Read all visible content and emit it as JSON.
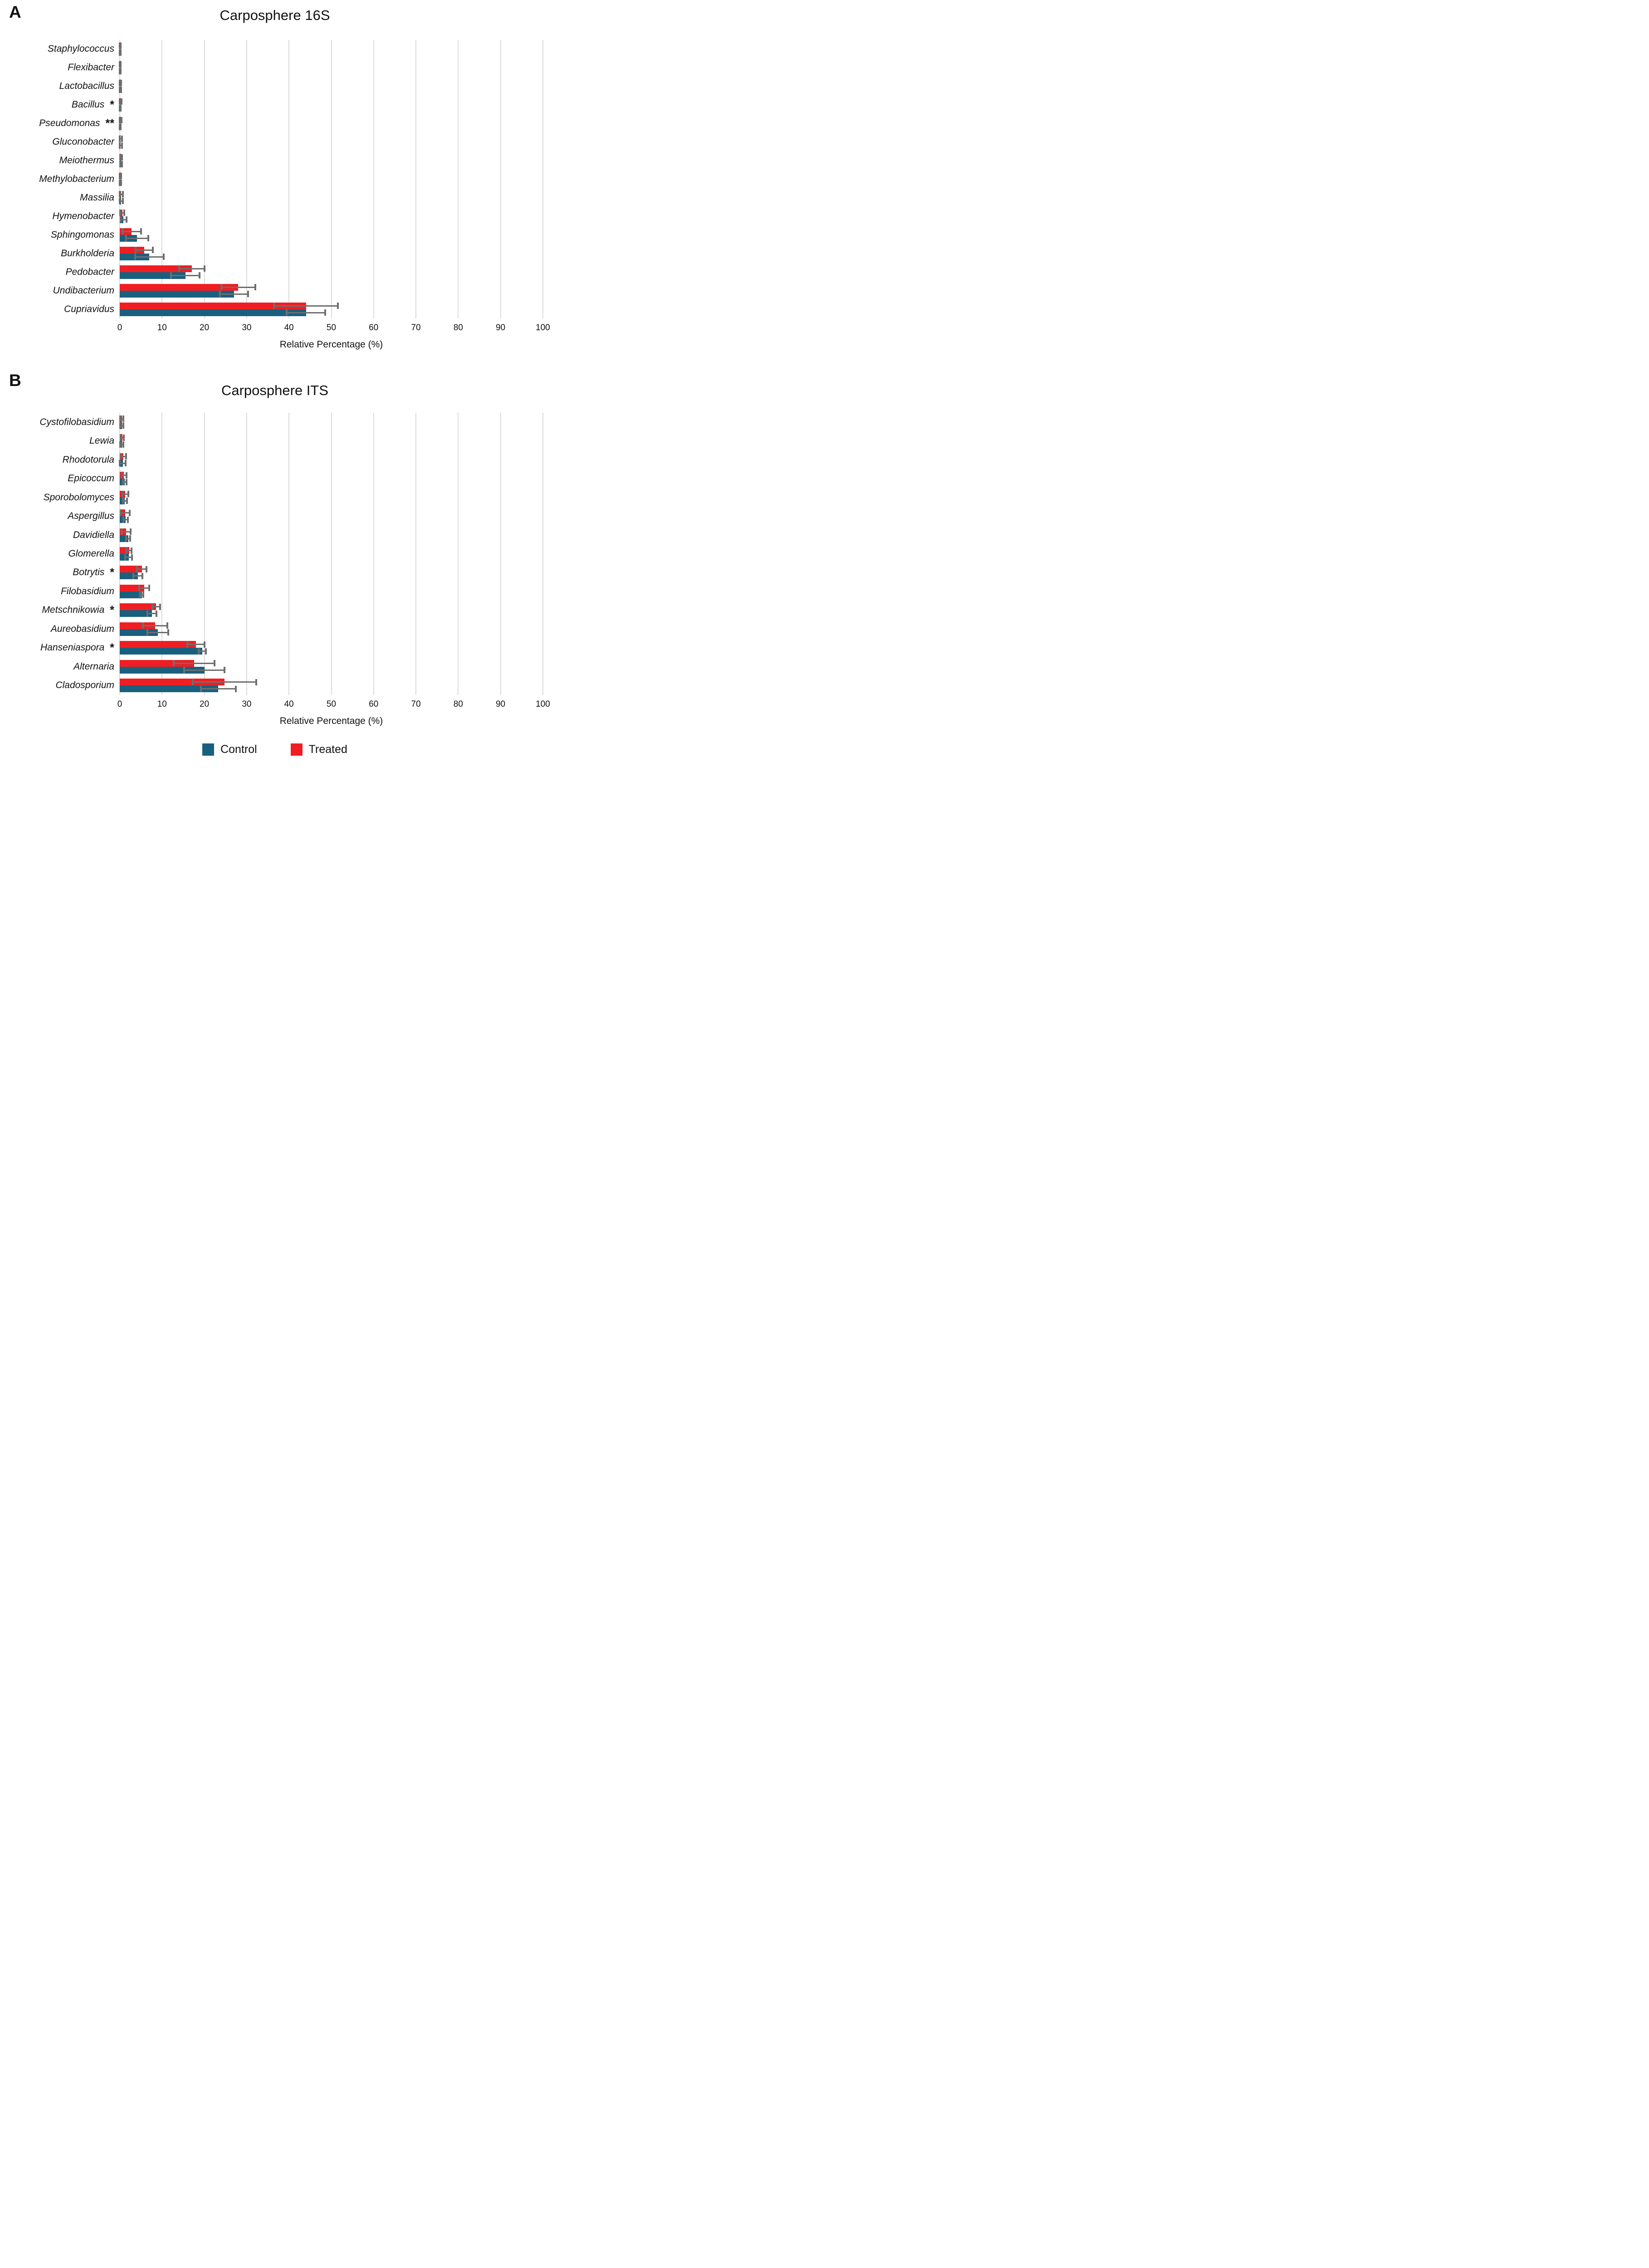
{
  "page": {
    "panel_a_letter": "A",
    "panel_b_letter": "B"
  },
  "legend": {
    "control_label": "Control",
    "treated_label": "Treated"
  },
  "colors": {
    "control": "#19607F",
    "treated": "#F01E23",
    "error_bar": "#6E6E6E",
    "gridline": "#DCDCDC"
  },
  "chart_data": [
    {
      "id": "carposphere-16s",
      "type": "bar",
      "orientation": "horizontal",
      "title": "Carposphere 16S",
      "panel_label": "A",
      "xlabel": "Relative Percentage (%)",
      "xlim": [
        0,
        100
      ],
      "x_ticks": [
        "0",
        "10",
        "20",
        "30",
        "40",
        "50",
        "60",
        "70",
        "80",
        "90",
        "100"
      ],
      "grid": true,
      "legend_position": "bottom",
      "series_names": [
        "Control",
        "Treated"
      ],
      "rows": [
        {
          "label": "Staphylococcus",
          "sig": "",
          "control": 0.1,
          "control_err": 0.15,
          "treated": 0.1,
          "treated_err": 0.15
        },
        {
          "label": "Flexibacter",
          "sig": "",
          "control": 0.1,
          "control_err": 0.15,
          "treated": 0.1,
          "treated_err": 0.15
        },
        {
          "label": "Lactobacillus",
          "sig": "",
          "control": 0.1,
          "control_err": 0.2,
          "treated": 0.1,
          "treated_err": 0.2
        },
        {
          "label": "Bacillus",
          "sig": "*",
          "control": 0.1,
          "control_err": 0.1,
          "treated": 0.2,
          "treated_err": 0.2
        },
        {
          "label": "Pseudomonas",
          "sig": "**",
          "control": 0.1,
          "control_err": 0.1,
          "treated": 0.2,
          "treated_err": 0.2
        },
        {
          "label": "Gluconobacter",
          "sig": "",
          "control": 0.2,
          "control_err": 0.3,
          "treated": 0.2,
          "treated_err": 0.3
        },
        {
          "label": "Meiothermus",
          "sig": "",
          "control": 0.3,
          "control_err": 0.2,
          "treated": 0.3,
          "treated_err": 0.2
        },
        {
          "label": "Methylobacterium",
          "sig": "",
          "control": 0.15,
          "control_err": 0.2,
          "treated": 0.15,
          "treated_err": 0.2
        },
        {
          "label": "Massilia",
          "sig": "",
          "control": 0.3,
          "control_err": 0.5,
          "treated": 0.3,
          "treated_err": 0.5
        },
        {
          "label": "Hymenobacter",
          "sig": "",
          "control": 0.9,
          "control_err": 0.7,
          "treated": 0.6,
          "treated_err": 0.5
        },
        {
          "label": "Sphingomonas",
          "sig": "",
          "control": 4.1,
          "control_err": 2.6,
          "treated": 2.8,
          "treated_err": 2.2
        },
        {
          "label": "Burkholderia",
          "sig": "",
          "control": 7.0,
          "control_err": 3.4,
          "treated": 5.8,
          "treated_err": 2.0
        },
        {
          "label": "Pedobacter",
          "sig": "",
          "control": 15.5,
          "control_err": 3.4,
          "treated": 17.0,
          "treated_err": 3.0
        },
        {
          "label": "Undibacterium",
          "sig": "",
          "control": 27.0,
          "control_err": 3.3,
          "treated": 28.0,
          "treated_err": 4.0
        },
        {
          "label": "Cupriavidus",
          "sig": "",
          "control": 44.0,
          "control_err": 4.6,
          "treated": 44.0,
          "treated_err": 7.6
        }
      ]
    },
    {
      "id": "carposphere-its",
      "type": "bar",
      "orientation": "horizontal",
      "title": "Carposphere ITS",
      "panel_label": "B",
      "xlabel": "Relative Percentage (%)",
      "xlim": [
        0,
        100
      ],
      "x_ticks": [
        "0",
        "10",
        "20",
        "30",
        "40",
        "50",
        "60",
        "70",
        "80",
        "90",
        "100"
      ],
      "grid": true,
      "legend_position": "bottom",
      "series_names": [
        "Control",
        "Treated"
      ],
      "rows": [
        {
          "label": "Cystofilobasidium",
          "sig": "",
          "control": 0.5,
          "control_err": 0.4,
          "treated": 0.5,
          "treated_err": 0.4
        },
        {
          "label": "Lewia",
          "sig": "",
          "control": 0.5,
          "control_err": 0.4,
          "treated": 0.6,
          "treated_err": 0.4
        },
        {
          "label": "Rhodotorula",
          "sig": "",
          "control": 0.7,
          "control_err": 0.7,
          "treated": 0.9,
          "treated_err": 0.6
        },
        {
          "label": "Epicoccum",
          "sig": "",
          "control": 1.2,
          "control_err": 0.4,
          "treated": 1.0,
          "treated_err": 0.6
        },
        {
          "label": "Sporobolomyces",
          "sig": "",
          "control": 1.2,
          "control_err": 0.5,
          "treated": 1.3,
          "treated_err": 0.7
        },
        {
          "label": "Aspergillus",
          "sig": "",
          "control": 1.4,
          "control_err": 0.5,
          "treated": 1.3,
          "treated_err": 1.1
        },
        {
          "label": "Davidiella",
          "sig": "",
          "control": 2.0,
          "control_err": 0.5,
          "treated": 1.5,
          "treated_err": 1.1
        },
        {
          "label": "Glomerella",
          "sig": "",
          "control": 2.1,
          "control_err": 0.8,
          "treated": 2.2,
          "treated_err": 0.6
        },
        {
          "label": "Botrytis",
          "sig": "*",
          "control": 4.3,
          "control_err": 1.1,
          "treated": 5.2,
          "treated_err": 1.1
        },
        {
          "label": "Filobasidium",
          "sig": "",
          "control": 5.2,
          "control_err": 0.4,
          "treated": 5.8,
          "treated_err": 1.2
        },
        {
          "label": "Metschnikowia",
          "sig": "*",
          "control": 7.6,
          "control_err": 1.1,
          "treated": 8.6,
          "treated_err": 0.9
        },
        {
          "label": "Aureobasidium",
          "sig": "",
          "control": 9.0,
          "control_err": 2.5,
          "treated": 8.4,
          "treated_err": 2.9
        },
        {
          "label": "Hanseniaspora",
          "sig": "*",
          "control": 19.5,
          "control_err": 0.9,
          "treated": 18.0,
          "treated_err": 2.0
        },
        {
          "label": "Alternaria",
          "sig": "",
          "control": 20.0,
          "control_err": 4.8,
          "treated": 17.6,
          "treated_err": 4.8
        },
        {
          "label": "Cladosporium",
          "sig": "",
          "control": 23.3,
          "control_err": 4.1,
          "treated": 24.8,
          "treated_err": 7.5
        }
      ]
    }
  ]
}
